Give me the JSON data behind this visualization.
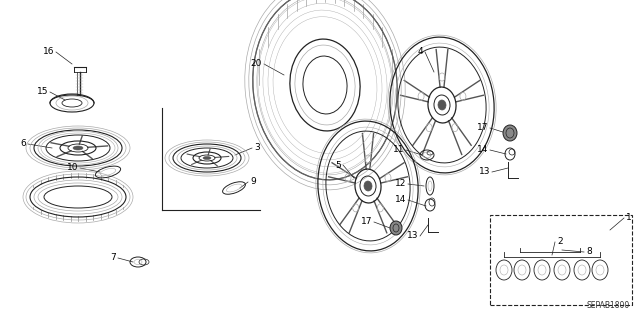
{
  "bg_color": "#ffffff",
  "fig_width": 6.4,
  "fig_height": 3.19,
  "dpi": 100,
  "part_code": "SEPAB1800",
  "lc": "#222222",
  "lgray": "#aaaaaa",
  "dgray": "#555555",
  "mgray": "#888888"
}
